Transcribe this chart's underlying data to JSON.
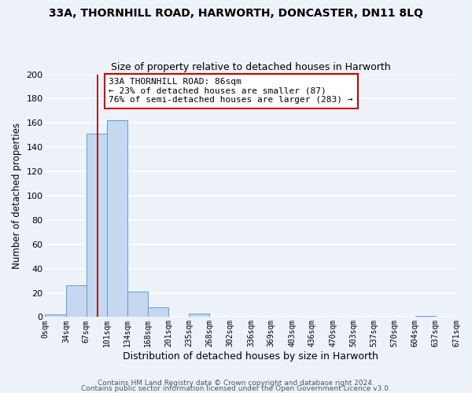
{
  "title": "33A, THORNHILL ROAD, HARWORTH, DONCASTER, DN11 8LQ",
  "subtitle": "Size of property relative to detached houses in Harworth",
  "xlabel": "Distribution of detached houses by size in Harworth",
  "ylabel": "Number of detached properties",
  "bin_edges": [
    0,
    34,
    67,
    101,
    134,
    168,
    201,
    235,
    268,
    302,
    336,
    369,
    403,
    436,
    470,
    503,
    537,
    570,
    604,
    637,
    671
  ],
  "bin_counts": [
    2,
    26,
    151,
    162,
    21,
    8,
    0,
    3,
    0,
    0,
    0,
    0,
    0,
    0,
    0,
    0,
    0,
    0,
    1,
    0
  ],
  "bar_color": "#c5d8f0",
  "bar_edge_color": "#5a9fd4",
  "property_size": 86,
  "vline_color": "#8b0000",
  "annotation_line1": "33A THORNHILL ROAD: 86sqm",
  "annotation_line2": "← 23% of detached houses are smaller (87)",
  "annotation_line3": "76% of semi-detached houses are larger (283) →",
  "annotation_box_color": "white",
  "annotation_box_edge_color": "#cc0000",
  "ylim": [
    0,
    200
  ],
  "yticks": [
    0,
    20,
    40,
    60,
    80,
    100,
    120,
    140,
    160,
    180,
    200
  ],
  "background_color": "#edf2f9",
  "grid_color": "white",
  "footer_line1": "Contains HM Land Registry data © Crown copyright and database right 2024.",
  "footer_line2": "Contains public sector information licensed under the Open Government Licence v3.0.",
  "tick_labels": [
    "0sqm",
    "34sqm",
    "67sqm",
    "101sqm",
    "134sqm",
    "168sqm",
    "201sqm",
    "235sqm",
    "268sqm",
    "302sqm",
    "336sqm",
    "369sqm",
    "403sqm",
    "436sqm",
    "470sqm",
    "503sqm",
    "537sqm",
    "570sqm",
    "604sqm",
    "637sqm",
    "671sqm"
  ]
}
